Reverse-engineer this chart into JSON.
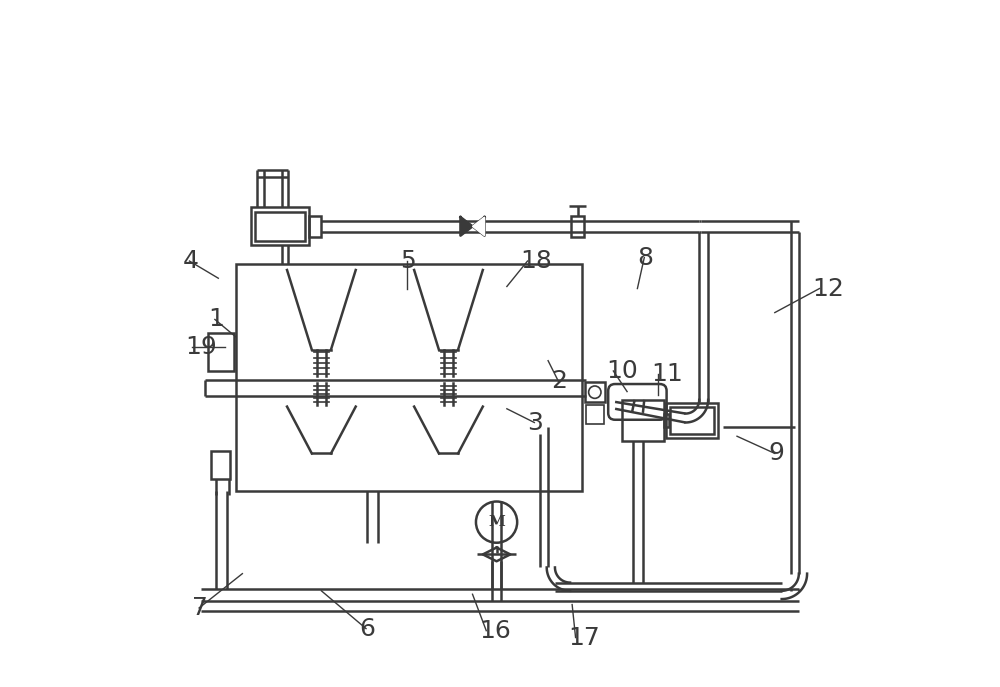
{
  "bg_color": "#ffffff",
  "lc": "#3a3a3a",
  "lw": 1.8,
  "lw_thin": 1.2,
  "font_size": 18,
  "labels": {
    "1": [
      0.075,
      0.535,
      0.115,
      0.51
    ],
    "2": [
      0.575,
      0.445,
      0.57,
      0.475
    ],
    "3": [
      0.54,
      0.385,
      0.51,
      0.405
    ],
    "4": [
      0.038,
      0.62,
      0.09,
      0.595
    ],
    "5": [
      0.355,
      0.62,
      0.365,
      0.58
    ],
    "6": [
      0.295,
      0.085,
      0.24,
      0.14
    ],
    "7": [
      0.052,
      0.115,
      0.125,
      0.165
    ],
    "8": [
      0.7,
      0.625,
      0.7,
      0.58
    ],
    "9": [
      0.89,
      0.34,
      0.845,
      0.365
    ],
    "10": [
      0.655,
      0.46,
      0.685,
      0.43
    ],
    "11": [
      0.72,
      0.455,
      0.73,
      0.425
    ],
    "12": [
      0.955,
      0.58,
      0.9,
      0.545
    ],
    "16": [
      0.47,
      0.082,
      0.46,
      0.135
    ],
    "17": [
      0.6,
      0.072,
      0.605,
      0.12
    ],
    "18": [
      0.53,
      0.62,
      0.51,
      0.583
    ],
    "19": [
      0.042,
      0.495,
      0.1,
      0.495
    ]
  }
}
